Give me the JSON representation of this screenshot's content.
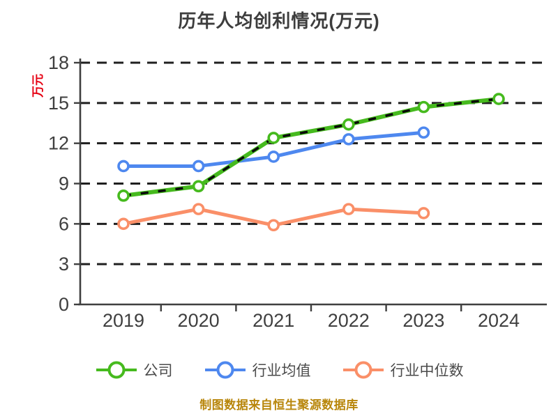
{
  "title": "历年人均创利情况(万元)",
  "footer": "制图数据来自恒生聚源数据库",
  "colors": {
    "title_text": "#3d3d3d",
    "axis": "#3f3f3f",
    "tick_label": "#3f3f3f",
    "grid": "#1f1f1f",
    "ylabel": "#e60012",
    "legend_text": "#4a4a4a",
    "footer_text": "#b8860b",
    "marker_fill": "#ffffff",
    "company_dash_overlay": "#0a0a0a"
  },
  "chart_data": {
    "type": "line",
    "title": "历年人均创利情况(万元)",
    "ylabel": "万元",
    "xlabel": "",
    "categories": [
      "2019",
      "2020",
      "2021",
      "2022",
      "2023",
      "2024"
    ],
    "yticks": [
      0,
      3,
      6,
      9,
      12,
      15,
      18
    ],
    "ylim": [
      0,
      18
    ],
    "grid": "horizontal-dashed",
    "legend_position": "bottom",
    "series": [
      {
        "id": "company",
        "name": "公司",
        "color": "#46ba1e",
        "dash_overlay": true,
        "values": [
          8.1,
          8.8,
          12.4,
          13.4,
          14.7,
          15.3
        ]
      },
      {
        "id": "industry-average",
        "name": "行业均值",
        "color": "#4e88ef",
        "dash_overlay": false,
        "values": [
          10.3,
          10.3,
          11.0,
          12.3,
          12.8,
          null
        ]
      },
      {
        "id": "industry-median",
        "name": "行业中位数",
        "color": "#fa8f68",
        "dash_overlay": false,
        "values": [
          6.0,
          7.1,
          5.9,
          7.1,
          6.8,
          null
        ]
      }
    ]
  }
}
